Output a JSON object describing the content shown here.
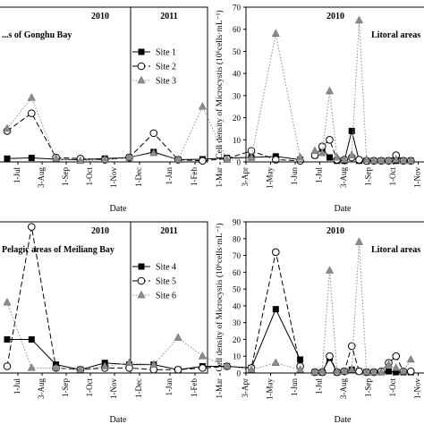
{
  "chart_data": [
    {
      "type": "line",
      "panel": "top-left",
      "year_labels": [
        "2010",
        "2011"
      ],
      "inset_label": "...s of Gonghu Bay",
      "xlabel": "Date",
      "ylabel": "",
      "tick_labels": [
        "1-Jul",
        "3-Aug",
        "1-Sep",
        "1-Oct",
        "1-Nov",
        "1-Dec",
        "1-Jan",
        "1-Feb",
        "1-Mar"
      ],
      "ylim": [
        0,
        70
      ],
      "legend": "top-right",
      "series": [
        {
          "name": "Site 1",
          "marker": "square",
          "dash": "solid",
          "x": [
            0,
            1,
            2,
            3,
            4,
            5,
            6,
            7,
            8,
            9,
            10,
            11,
            12
          ],
          "y": [
            1.5,
            1.8,
            1.2,
            1.0,
            1.5,
            2.0,
            4.5,
            1.0,
            1.2,
            1.8,
            2.0,
            2.5,
            1.0
          ]
        },
        {
          "name": "Site 2",
          "marker": "circle",
          "dash": "dashed",
          "x": [
            0,
            1,
            2,
            3,
            4,
            5,
            6,
            7,
            8,
            9,
            10,
            11,
            12
          ],
          "y": [
            14,
            22,
            2.0,
            1.5,
            1.0,
            2.0,
            13,
            1.0,
            0.5,
            1.5,
            5.0,
            1.0,
            0.5
          ]
        },
        {
          "name": "Site 3",
          "marker": "triangle",
          "dash": "dotted",
          "x": [
            0,
            1,
            2,
            3,
            4,
            5,
            6,
            7,
            8,
            9,
            10,
            11,
            12
          ],
          "y": [
            15,
            29,
            1.5,
            0.5,
            1.0,
            2.0,
            4.0,
            1.0,
            25,
            1.0,
            2.0,
            58,
            2.0
          ]
        }
      ]
    },
    {
      "type": "line",
      "panel": "top-right",
      "year_labels": [
        "2010"
      ],
      "inset_label": "Litoral areas",
      "xlabel": "Date",
      "ylabel": "Cell density of Microcystis (10⁶cells·mL⁻¹)",
      "tick_labels": [
        "3-Apr",
        "1-May",
        "1-Jun",
        "1-Jul",
        "3-Aug",
        "1-Sep",
        "1-Oct",
        "1-Nov",
        "1-Dec"
      ],
      "ylim": [
        0,
        70
      ],
      "yticks": [
        0,
        10,
        20,
        30,
        40,
        50,
        60,
        70
      ],
      "series": [
        {
          "marker": "square",
          "dash": "solid",
          "x": [
            2.8,
            3.1,
            3.4,
            3.7,
            4.0,
            4.3,
            4.6,
            4.9,
            5.2,
            5.5,
            5.8,
            6.1,
            6.4,
            6.7
          ],
          "y": [
            3,
            6,
            2,
            0.5,
            0.5,
            14,
            0.5,
            0.5,
            0.5,
            0.5,
            0.5,
            0.5,
            0.5,
            0.5
          ]
        },
        {
          "marker": "circle",
          "dash": "dashed",
          "x": [
            2.8,
            3.1,
            3.4,
            3.7,
            4.0,
            4.3,
            4.6,
            4.9,
            5.2,
            5.5,
            5.8,
            6.1,
            6.4,
            6.7
          ],
          "y": [
            3,
            7,
            10,
            1,
            1,
            2,
            1,
            0.5,
            0.5,
            0.5,
            0.5,
            3,
            0.5,
            0.5
          ]
        },
        {
          "marker": "triangle",
          "dash": "dotted",
          "x": [
            2.8,
            3.1,
            3.4,
            3.7,
            4.0,
            4.3,
            4.6,
            4.9,
            5.2,
            5.5,
            5.8,
            6.1,
            6.4,
            6.7
          ],
          "y": [
            5,
            4,
            32,
            2,
            1,
            3,
            64,
            1,
            0.5,
            0.5,
            0.5,
            1,
            0.5,
            0.5
          ]
        }
      ]
    },
    {
      "type": "line",
      "panel": "bottom-left",
      "year_labels": [
        "2010",
        "2011"
      ],
      "inset_label": "Pelagic areas of Meiliang Bay",
      "xlabel": "Date",
      "ylabel": "",
      "tick_labels": [
        "1-Jul",
        "3-Aug",
        "1-Sep",
        "1-Oct",
        "1-Nov",
        "1-Dec",
        "1-Jan",
        "1-Feb",
        "1-Mar"
      ],
      "ylim": [
        0,
        90
      ],
      "legend": "top-right",
      "series": [
        {
          "name": "Site 4",
          "marker": "square",
          "dash": "solid",
          "x": [
            0,
            1,
            2,
            3,
            4,
            5,
            6,
            7,
            8,
            9,
            10,
            11,
            12
          ],
          "y": [
            20,
            20,
            5,
            2,
            6,
            5,
            5,
            2,
            4,
            4,
            3,
            38,
            8
          ]
        },
        {
          "name": "Site 5",
          "marker": "circle",
          "dash": "dashed",
          "x": [
            0,
            1,
            2,
            3,
            4,
            5,
            6,
            7,
            8,
            9,
            10,
            11,
            12
          ],
          "y": [
            4,
            87,
            3,
            2,
            3,
            3,
            2,
            2,
            3,
            4,
            3,
            72,
            4
          ]
        },
        {
          "name": "Site 6",
          "marker": "triangle",
          "dash": "dotted",
          "x": [
            0,
            1,
            2,
            3,
            4,
            5,
            6,
            7,
            8,
            9,
            10,
            11,
            12
          ],
          "y": [
            42,
            3,
            3,
            2,
            4,
            6,
            5,
            21,
            10,
            4,
            2,
            6,
            2
          ]
        }
      ]
    },
    {
      "type": "line",
      "panel": "bottom-right",
      "year_labels": [
        "2010"
      ],
      "inset_label": "Litoral areas",
      "xlabel": "Date",
      "ylabel": "Cell density of Microcystis (10⁶cells·mL⁻¹)",
      "tick_labels": [
        "3-Apr",
        "1-May",
        "1-Jun",
        "1-Jul",
        "3-Aug",
        "1-Sep",
        "1-Oct",
        "1-Nov",
        "1-Dec"
      ],
      "ylim": [
        0,
        90
      ],
      "yticks": [
        0,
        10,
        20,
        30,
        40,
        50,
        60,
        70,
        80,
        90
      ],
      "series": [
        {
          "marker": "square",
          "dash": "solid",
          "x": [
            2.8,
            3.1,
            3.4,
            3.7,
            4.0,
            4.3,
            4.6,
            4.9,
            5.2,
            5.5,
            5.8,
            6.1,
            6.4,
            6.7
          ],
          "y": [
            0.5,
            0.5,
            9,
            0.5,
            1,
            2,
            1,
            0.5,
            0.5,
            0.5,
            1,
            0.5,
            0.5,
            0.5
          ]
        },
        {
          "marker": "circle",
          "dash": "dashed",
          "x": [
            2.8,
            3.1,
            3.4,
            3.7,
            4.0,
            4.3,
            4.6,
            4.9,
            5.2,
            5.5,
            5.8,
            6.1,
            6.4,
            6.7
          ],
          "y": [
            0.5,
            0.5,
            10,
            0.5,
            1,
            16,
            1,
            0.5,
            0.5,
            1,
            6,
            10,
            1,
            1
          ]
        },
        {
          "marker": "triangle",
          "dash": "dotted",
          "x": [
            2.8,
            3.1,
            3.4,
            3.7,
            4.0,
            4.3,
            4.6,
            4.9,
            5.2,
            5.5,
            5.8,
            6.1,
            6.4,
            6.7
          ],
          "y": [
            0.5,
            1,
            61,
            1,
            1,
            2,
            78,
            0.5,
            0.5,
            0.5,
            5,
            3,
            1,
            8
          ]
        }
      ]
    }
  ]
}
